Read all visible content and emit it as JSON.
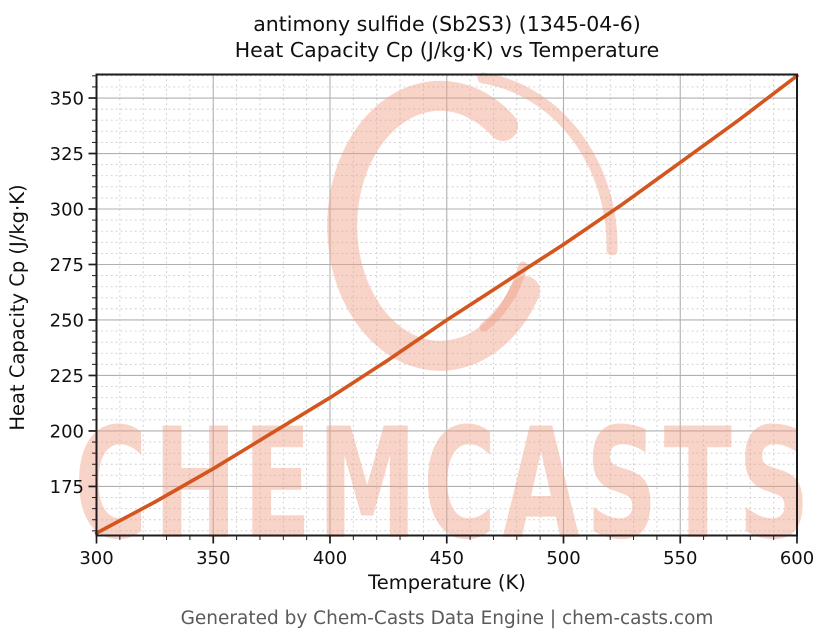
{
  "titles": {
    "line1": "antimony sulfide (Sb2S3) (1345-04-6)",
    "line2": "Heat Capacity Cp (J/kg·K) vs Temperature"
  },
  "footer": {
    "text": "Generated by Chem-Casts Data Engine | chem-casts.com"
  },
  "watermark": {
    "text": "CHEMCASTS",
    "color": "#ef9e86"
  },
  "colors": {
    "line": "#d2561e",
    "grid_major": "#b0b0b0",
    "grid_minor": "#cbcbcb",
    "spine": "#1c1c1c",
    "footer_gray": "#5a5a5a",
    "watermark_salmon": "#f8d3c8"
  },
  "chart_data": {
    "type": "line",
    "title": "antimony sulfide (Sb2S3) (1345-04-6)\nHeat Capacity Cp (J/kg·K) vs Temperature",
    "xlabel": "Temperature (K)",
    "ylabel": "Heat Capacity Cp (J/kg·K)",
    "xlim": [
      300,
      600
    ],
    "ylim": [
      152.9,
      360.6
    ],
    "xticks": [
      300,
      350,
      400,
      450,
      500,
      550,
      600
    ],
    "yticks": [
      175,
      200,
      225,
      250,
      275,
      300,
      325,
      350
    ],
    "x_minor_step": 10,
    "y_minor_step": 5,
    "grid": true,
    "legend": "none",
    "series": [
      {
        "name": "Cp",
        "color": "#d2561e",
        "x": [
          300,
          325,
          350,
          375,
          400,
          425,
          450,
          475,
          500,
          525,
          550,
          575,
          600
        ],
        "y": [
          154,
          168,
          183,
          199,
          215,
          232,
          250,
          267,
          284,
          302,
          321,
          340,
          360
        ]
      }
    ]
  }
}
